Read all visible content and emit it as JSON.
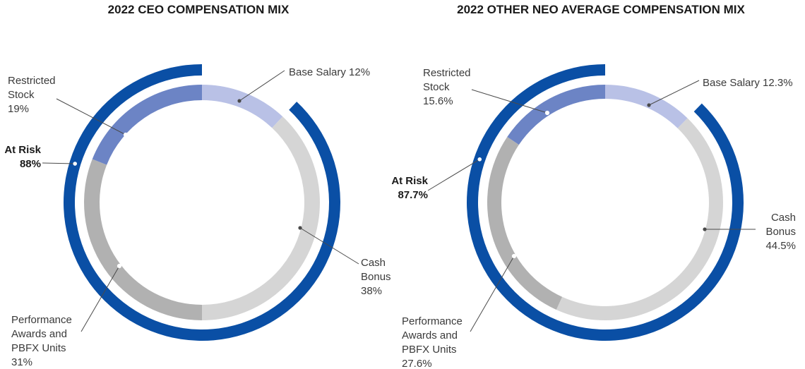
{
  "chart_data": [
    {
      "type": "donut",
      "title": "2022 CEO COMPENSATION MIX",
      "slices": [
        {
          "name": "Base Salary",
          "value": 12,
          "label": [
            "Base Salary 12%"
          ],
          "color": "#b9c1e6"
        },
        {
          "name": "Cash Bonus",
          "value": 38,
          "label": [
            "Cash",
            "Bonus",
            "38%"
          ],
          "color": "#d5d5d5"
        },
        {
          "name": "Performance Awards and PBFX Units",
          "value": 31,
          "label": [
            "Performance",
            "Awards and",
            "PBFX Units",
            "31%"
          ],
          "color": "#b1b1b1"
        },
        {
          "name": "Restricted Stock",
          "value": 19,
          "label": [
            "Restricted",
            "Stock",
            "19%"
          ],
          "color": "#6c84c5"
        }
      ],
      "at_risk": {
        "value": 88,
        "label": [
          "At Risk",
          "88%"
        ],
        "color": "#0a4fa5"
      }
    },
    {
      "type": "donut",
      "title": "2022 OTHER NEO AVERAGE COMPENSATION MIX",
      "slices": [
        {
          "name": "Base Salary",
          "value": 12.3,
          "label": [
            "Base Salary 12.3%"
          ],
          "color": "#b9c1e6"
        },
        {
          "name": "Cash Bonus",
          "value": 44.5,
          "label": [
            "Cash",
            "Bonus",
            "44.5%"
          ],
          "color": "#d5d5d5"
        },
        {
          "name": "Performance Awards and PBFX Units",
          "value": 27.6,
          "label": [
            "Performance",
            "Awards and",
            "PBFX Units",
            "27.6%"
          ],
          "color": "#b1b1b1"
        },
        {
          "name": "Restricted Stock",
          "value": 15.6,
          "label": [
            "Restricted",
            "Stock",
            "15.6%"
          ],
          "color": "#6c84c5"
        }
      ],
      "at_risk": {
        "value": 87.7,
        "label": [
          "At Risk",
          "87.7%"
        ],
        "color": "#0a4fa5"
      }
    }
  ]
}
